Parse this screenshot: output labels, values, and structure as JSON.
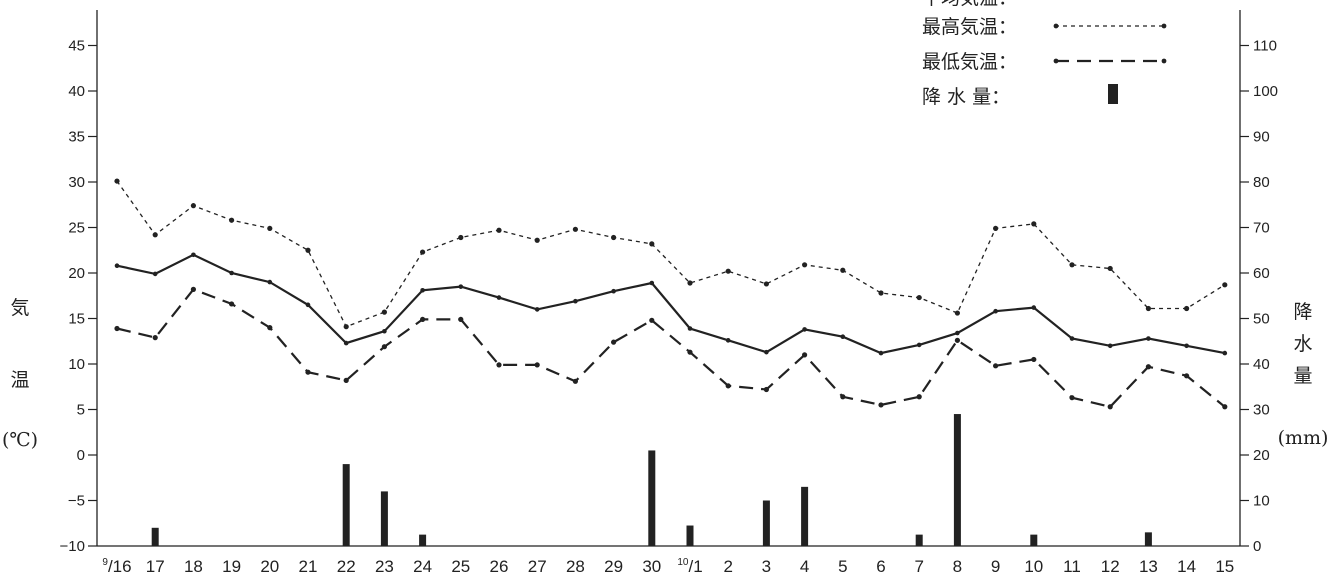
{
  "chart_data": {
    "type": "line",
    "categories": [
      "9/16",
      "17",
      "18",
      "19",
      "20",
      "21",
      "22",
      "23",
      "24",
      "25",
      "26",
      "27",
      "28",
      "29",
      "30",
      "10/1",
      "2",
      "3",
      "4",
      "5",
      "6",
      "7",
      "8",
      "9",
      "10",
      "11",
      "12",
      "13",
      "14",
      "15"
    ],
    "series": [
      {
        "name": "平均気温",
        "axis": "left",
        "style": "solid",
        "values": [
          20.8,
          19.9,
          22.0,
          20.0,
          19.0,
          16.5,
          12.3,
          13.6,
          18.1,
          18.5,
          17.3,
          16.0,
          16.9,
          18.0,
          18.9,
          13.9,
          12.6,
          11.3,
          13.8,
          13.0,
          11.2,
          12.1,
          13.4,
          15.8,
          16.2,
          12.8,
          12.0,
          12.8,
          12.0,
          11.2
        ]
      },
      {
        "name": "最高気温",
        "axis": "left",
        "style": "dotted",
        "values": [
          30.1,
          24.2,
          27.4,
          25.8,
          24.9,
          22.5,
          14.1,
          15.7,
          22.3,
          23.9,
          24.7,
          23.6,
          24.8,
          23.9,
          23.2,
          18.9,
          20.2,
          18.8,
          20.9,
          20.3,
          17.8,
          17.3,
          15.6,
          24.9,
          25.4,
          20.9,
          20.5,
          16.1,
          16.1,
          18.7
        ]
      },
      {
        "name": "最低気温",
        "axis": "left",
        "style": "dashed",
        "values": [
          13.9,
          12.9,
          18.2,
          16.6,
          14.0,
          9.1,
          8.2,
          11.9,
          14.9,
          14.9,
          9.9,
          9.9,
          8.1,
          12.4,
          14.8,
          11.3,
          7.6,
          7.2,
          11.0,
          6.4,
          5.5,
          6.4,
          12.6,
          9.8,
          10.5,
          6.3,
          5.3,
          9.7,
          8.7,
          5.3
        ]
      },
      {
        "name": "降水量",
        "axis": "right",
        "type": "bar",
        "values": [
          0,
          4,
          0,
          0,
          0,
          0,
          18,
          12,
          2.5,
          0,
          0,
          0,
          0,
          0,
          21,
          4.5,
          0,
          10,
          13,
          0,
          0,
          2.5,
          29,
          0,
          2.5,
          0,
          0,
          3,
          0,
          0
        ]
      }
    ],
    "left_axis": {
      "label_chars": [
        "気",
        "温",
        "(℃)"
      ],
      "ylim": [
        -10,
        48
      ],
      "ticks": [
        "45",
        "40",
        "35",
        "30",
        "25",
        "20",
        "15",
        "10",
        "5",
        "0",
        "−5",
        "−10"
      ],
      "tick_values": [
        45,
        40,
        35,
        30,
        25,
        20,
        15,
        10,
        5,
        0,
        -5,
        -10
      ]
    },
    "right_axis": {
      "label_chars": [
        "降",
        "水",
        "量",
        "(mm)"
      ],
      "ylim": [
        0,
        121
      ],
      "ticks": [
        "110",
        "100",
        "90",
        "80",
        "70",
        "60",
        "50",
        "40",
        "30",
        "20",
        "10",
        "0"
      ],
      "tick_values": [
        110,
        100,
        90,
        80,
        70,
        60,
        50,
        40,
        30,
        20,
        10,
        0
      ]
    },
    "legend": {
      "placement": "top-right",
      "entries": [
        {
          "label": "平均気温：",
          "style": "solid"
        },
        {
          "label": "最高気温：",
          "style": "dotted"
        },
        {
          "label": "最低気温：",
          "style": "dashed"
        },
        {
          "label": "降 水 量：",
          "style": "bar"
        }
      ]
    },
    "grid": false
  }
}
